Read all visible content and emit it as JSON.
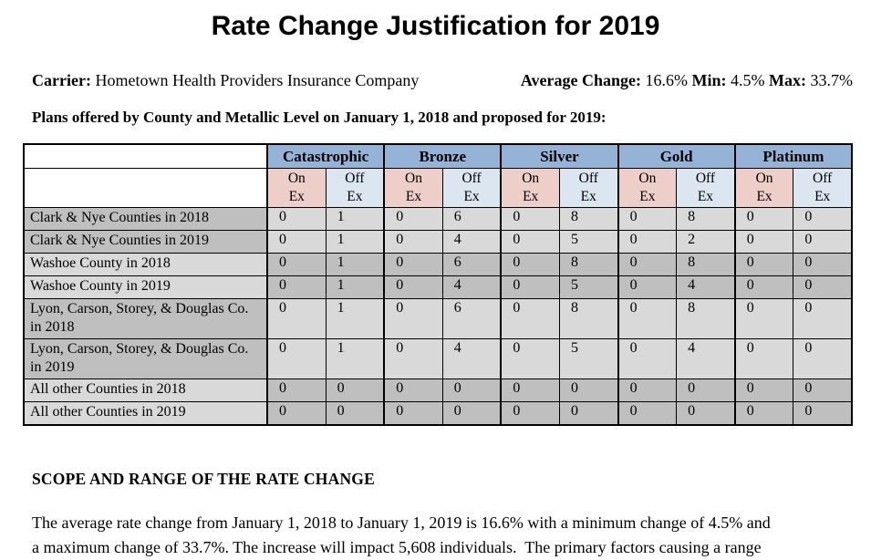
{
  "page": {
    "title": "Rate Change Justification for 2019"
  },
  "carrier_line": {
    "carrier_label": "Carrier:",
    "carrier_value": "Hometown Health Providers Insurance Company",
    "avg_label": "Average Change:",
    "avg_value": "16.6%",
    "min_label": "Min:",
    "min_value": "4.5%",
    "max_label": "Max:",
    "max_value": "33.7%"
  },
  "plans_heading": "Plans offered by County and Metallic Level on January 1, 2018 and proposed for 2019:",
  "table": {
    "metal_headers": [
      "Catastrophic",
      "Bronze",
      "Silver",
      "Gold",
      "Platinum"
    ],
    "sub_on": [
      "On",
      "Ex"
    ],
    "sub_off": [
      "Off",
      "Ex"
    ],
    "rows": [
      {
        "label": "Clark & Nye Counties in 2018",
        "label_shade": "dark",
        "values": [
          "0",
          "1",
          "0",
          "6",
          "0",
          "8",
          "0",
          "8",
          "0",
          "0"
        ]
      },
      {
        "label": "Clark & Nye Counties in 2019",
        "label_shade": "dark",
        "values": [
          "0",
          "1",
          "0",
          "4",
          "0",
          "5",
          "0",
          "2",
          "0",
          "0"
        ]
      },
      {
        "label": "Washoe County in 2018",
        "label_shade": "light",
        "values": [
          "0",
          "1",
          "0",
          "6",
          "0",
          "8",
          "0",
          "8",
          "0",
          "0"
        ]
      },
      {
        "label": "Washoe County in 2019",
        "label_shade": "light",
        "values": [
          "0",
          "1",
          "0",
          "4",
          "0",
          "5",
          "0",
          "4",
          "0",
          "0"
        ]
      },
      {
        "label": "Lyon, Carson, Storey, & Douglas Co. in 2018",
        "label_shade": "dark",
        "values": [
          "0",
          "1",
          "0",
          "6",
          "0",
          "8",
          "0",
          "8",
          "0",
          "0"
        ]
      },
      {
        "label": "Lyon, Carson, Storey, & Douglas Co. in 2019",
        "label_shade": "dark",
        "values": [
          "0",
          "1",
          "0",
          "4",
          "0",
          "5",
          "0",
          "4",
          "0",
          "0"
        ]
      },
      {
        "label": "All other Counties in 2018",
        "label_shade": "light",
        "values": [
          "0",
          "0",
          "0",
          "0",
          "0",
          "0",
          "0",
          "0",
          "0",
          "0"
        ]
      },
      {
        "label": "All other Counties in 2019",
        "label_shade": "light",
        "values": [
          "0",
          "0",
          "0",
          "0",
          "0",
          "0",
          "0",
          "0",
          "0",
          "0"
        ]
      }
    ]
  },
  "scope": {
    "heading": "SCOPE AND RANGE OF THE RATE CHANGE",
    "paragraph_lines": [
      "The average rate change from January 1, 2018 to January 1, 2019 is 16.6% with a minimum change of 4.5% and",
      "a maximum change of 33.7%. The increase will impact 5,608 individuals.  The primary factors causing a range"
    ]
  },
  "colors": {
    "metal_header_bg": "#95B3D7",
    "on_ex_bg": "#EDCEC9",
    "off_ex_bg": "#DCE6F1",
    "row_dark_bg": "#BFBFBF",
    "row_light_bg": "#D9D9D9"
  }
}
